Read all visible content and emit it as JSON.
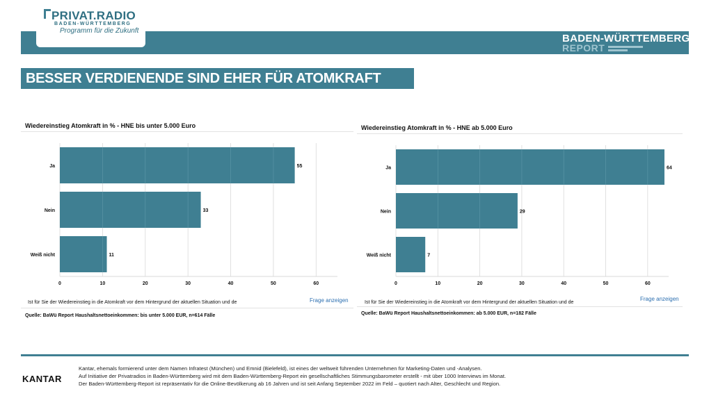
{
  "brand": {
    "name": "PRIVAT.RADIO",
    "region": "BADEN-WÜRTTEMBERG",
    "tagline": "Programm für die Zukunft"
  },
  "report": {
    "title": "BADEN-WÜRTTEMBERG",
    "subtitle": "REPORT"
  },
  "headline": "BESSER VERDIENENDE SIND EHER FÜR ATOMKRAFT",
  "charts": [
    {
      "question": "Ist für Sie der Wiedereinstieg in die Atomkraft vor dem Hintergrund der aktuellen Situation und de",
      "link": "Frage anzeigen",
      "source": "Quelle: BaWü Report Haushaltsnettoeinkommen: bis unter 5.000 EUR, n=614 Fälle"
    },
    {
      "question": "Ist für Sie der Wiedereinstieg in die Atomkraft vor dem Hintergrund der aktuellen Situation und de",
      "link": "Frage anzeigen",
      "source": "Quelle: BaWü Report Haushaltsnettoeinkommen: ab 5.000 EUR, n=182 Fälle"
    }
  ],
  "chart_data": [
    {
      "type": "bar",
      "orientation": "horizontal",
      "title": "Wiedereinstieg Atomkraft in % - HNE bis unter 5.000 Euro",
      "categories": [
        "Ja",
        "Nein",
        "Weiß nicht"
      ],
      "values": [
        55,
        33,
        11
      ],
      "xlim": [
        0,
        65
      ],
      "xticks": [
        0,
        10,
        20,
        30,
        40,
        50,
        60
      ],
      "bar_color": "#3f7f92",
      "grid": true
    },
    {
      "type": "bar",
      "orientation": "horizontal",
      "title": "Wiedereinstieg Atomkraft in % - HNE ab 5.000 Euro",
      "categories": [
        "Ja",
        "Nein",
        "Weiß nicht"
      ],
      "values": [
        64,
        29,
        7
      ],
      "xlim": [
        0,
        65
      ],
      "xticks": [
        0,
        10,
        20,
        30,
        40,
        50,
        60
      ],
      "bar_color": "#3f7f92",
      "grid": true
    }
  ],
  "footer": {
    "logo": "KANTAR",
    "line1": "Kantar, ehemals formierend unter dem Namen Infratest (München) und Emnid (Bielefeld), ist eines der weltweit führenden Unternehmen für Marketing-Daten und -Analysen.",
    "line2": "Auf Initiative der Privatradios in Baden-Württemberg wird mit dem Baden-Württemberg-Report ein gesellschaftliches Stimmungsbarometer erstellt - mit über 1000 Interviews im Monat.",
    "line3": "Der Baden-Württemberg-Report ist repräsentativ für die Online-Bevölkerung ab 16 Jahren und ist seit Anfang September 2022 im Feld – quotiert nach Alter, Geschlecht und Region."
  }
}
